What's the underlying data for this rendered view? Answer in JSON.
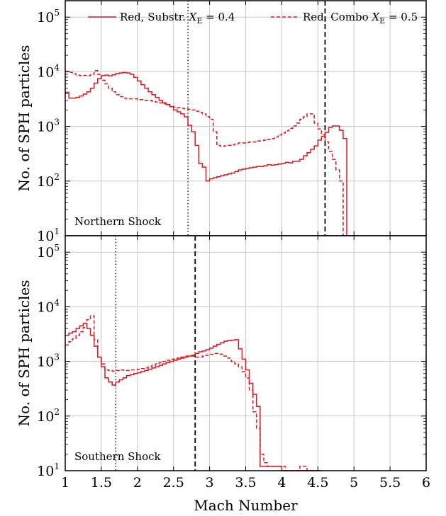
{
  "chart_data": {
    "type": "line",
    "xlabel": "Mach Number",
    "ylabel": "No. of SPH particles",
    "xlim": [
      1,
      6
    ],
    "ylim": [
      10,
      200000
    ],
    "yscale": "log",
    "grid": true,
    "x_ticks": [
      "1",
      "1.5",
      "2",
      "2.5",
      "3",
      "3.5",
      "4",
      "4.5",
      "5",
      "5.5",
      "6"
    ],
    "y_tick_base": "10",
    "y_tick_exponents": [
      "1",
      "2",
      "3",
      "4",
      "5"
    ],
    "legend": {
      "placement": "top",
      "entries": [
        {
          "style": "solid",
          "prefix": "Red, Substr.",
          "var": "X",
          "sub": "E",
          "suffix": "= 0.4"
        },
        {
          "style": "dashed",
          "prefix": "Red, Combo",
          "var": "X",
          "sub": "E",
          "suffix": "= 0.5"
        }
      ]
    },
    "color": "#e0161c",
    "panels": [
      {
        "label": "Northern Shock",
        "vline_dotted": 2.7,
        "vline_dashed": 4.6,
        "series": [
          {
            "style": "solid",
            "x": [
              1.0,
              1.05,
              1.1,
              1.15,
              1.2,
              1.25,
              1.3,
              1.35,
              1.4,
              1.45,
              1.5,
              1.55,
              1.6,
              1.65,
              1.7,
              1.75,
              1.8,
              1.85,
              1.9,
              1.95,
              2.0,
              2.05,
              2.1,
              2.15,
              2.2,
              2.25,
              2.3,
              2.35,
              2.4,
              2.45,
              2.5,
              2.55,
              2.6,
              2.65,
              2.7,
              2.75,
              2.8,
              2.85,
              2.9,
              2.95,
              3.0,
              3.05,
              3.1,
              3.15,
              3.2,
              3.25,
              3.3,
              3.35,
              3.4,
              3.45,
              3.5,
              3.55,
              3.6,
              3.65,
              3.7,
              3.75,
              3.8,
              3.85,
              3.9,
              3.95,
              4.0,
              4.05,
              4.1,
              4.15,
              4.2,
              4.25,
              4.3,
              4.35,
              4.4,
              4.45,
              4.5,
              4.55,
              4.6,
              4.65,
              4.7,
              4.75,
              4.8,
              4.85
            ],
            "y": [
              4200,
              3300,
              3300,
              3400,
              3600,
              3900,
              4300,
              5000,
              6200,
              7500,
              8500,
              8700,
              8400,
              8800,
              9300,
              9500,
              9700,
              9500,
              9000,
              7900,
              6800,
              5800,
              5000,
              4300,
              3800,
              3400,
              3000,
              2700,
              2500,
              2300,
              2000,
              1850,
              1700,
              1500,
              1050,
              800,
              450,
              210,
              180,
              100,
              110,
              115,
              120,
              125,
              130,
              135,
              140,
              150,
              160,
              165,
              170,
              175,
              180,
              185,
              185,
              190,
              200,
              195,
              200,
              205,
              210,
              220,
              215,
              230,
              230,
              250,
              290,
              330,
              380,
              440,
              560,
              650,
              780,
              960,
              1020,
              1020,
              850,
              600
            ]
          },
          {
            "style": "dashed",
            "x": [
              1.0,
              1.05,
              1.1,
              1.15,
              1.2,
              1.25,
              1.3,
              1.35,
              1.4,
              1.45,
              1.5,
              1.55,
              1.6,
              1.65,
              1.7,
              1.75,
              1.8,
              1.85,
              1.9,
              1.95,
              2.0,
              2.05,
              2.1,
              2.15,
              2.2,
              2.25,
              2.3,
              2.35,
              2.4,
              2.45,
              2.5,
              2.55,
              2.6,
              2.65,
              2.7,
              2.75,
              2.8,
              2.85,
              2.9,
              2.95,
              3.0,
              3.05,
              3.1,
              3.15,
              3.2,
              3.25,
              3.3,
              3.35,
              3.4,
              3.45,
              3.5,
              3.55,
              3.6,
              3.65,
              3.7,
              3.75,
              3.8,
              3.85,
              3.9,
              3.95,
              4.0,
              4.05,
              4.1,
              4.15,
              4.2,
              4.25,
              4.3,
              4.35,
              4.4,
              4.45,
              4.5,
              4.55,
              4.6,
              4.65,
              4.7,
              4.75,
              4.8
            ],
            "y": [
              10200,
              9800,
              9200,
              8700,
              8500,
              8600,
              8500,
              8900,
              10500,
              9000,
              7000,
              6000,
              5000,
              4300,
              3800,
              3500,
              3300,
              3200,
              3200,
              3200,
              3100,
              3100,
              3000,
              3000,
              2900,
              2800,
              2700,
              2600,
              2500,
              2350,
              2250,
              2200,
              2150,
              2100,
              2050,
              2000,
              1900,
              1800,
              1700,
              1500,
              1350,
              800,
              450,
              430,
              440,
              450,
              460,
              480,
              500,
              500,
              510,
              520,
              520,
              540,
              550,
              560,
              580,
              600,
              640,
              700,
              760,
              830,
              920,
              1020,
              1150,
              1350,
              1500,
              1700,
              1700,
              1150,
              900,
              700,
              520,
              350,
              250,
              160,
              100
            ]
          }
        ]
      },
      {
        "label": "Southern Shock",
        "vline_dotted": 1.7,
        "vline_dashed": 2.8,
        "series": [
          {
            "style": "solid",
            "x": [
              1.0,
              1.05,
              1.1,
              1.15,
              1.2,
              1.25,
              1.3,
              1.35,
              1.4,
              1.45,
              1.5,
              1.55,
              1.6,
              1.65,
              1.7,
              1.75,
              1.8,
              1.85,
              1.9,
              1.95,
              2.0,
              2.05,
              2.1,
              2.15,
              2.2,
              2.25,
              2.3,
              2.35,
              2.4,
              2.45,
              2.5,
              2.55,
              2.6,
              2.65,
              2.7,
              2.75,
              2.8,
              2.85,
              2.9,
              2.95,
              3.0,
              3.05,
              3.1,
              3.15,
              3.2,
              3.25,
              3.3,
              3.35,
              3.4,
              3.45,
              3.5,
              3.55,
              3.6,
              3.65,
              3.7,
              3.75,
              3.8,
              3.85,
              3.9,
              3.95,
              4.0,
              4.05,
              4.1,
              4.15,
              4.2,
              4.25,
              4.3,
              4.35,
              4.4,
              4.45,
              4.5
            ],
            "y": [
              3000,
              3300,
              3500,
              4000,
              4500,
              5000,
              4000,
              3000,
              1900,
              1200,
              800,
              500,
              420,
              370,
              420,
              460,
              500,
              550,
              570,
              600,
              620,
              650,
              680,
              720,
              760,
              800,
              850,
              900,
              950,
              1000,
              1050,
              1100,
              1150,
              1200,
              1250,
              1300,
              1400,
              1500,
              1550,
              1650,
              1750,
              1900,
              2050,
              2200,
              2350,
              2400,
              2450,
              2500,
              1700,
              1100,
              700,
              400,
              250,
              150,
              12,
              12,
              12,
              12,
              12,
              12,
              10,
              10,
              10,
              10,
              10,
              10,
              10,
              10,
              10,
              10,
              10
            ]
          },
          {
            "style": "dashed",
            "x": [
              1.0,
              1.05,
              1.1,
              1.15,
              1.2,
              1.25,
              1.3,
              1.35,
              1.4,
              1.45,
              1.5,
              1.55,
              1.6,
              1.65,
              1.7,
              1.75,
              1.8,
              1.85,
              1.9,
              1.95,
              2.0,
              2.05,
              2.1,
              2.15,
              2.2,
              2.25,
              2.3,
              2.35,
              2.4,
              2.45,
              2.5,
              2.55,
              2.6,
              2.65,
              2.7,
              2.75,
              2.8,
              2.85,
              2.9,
              2.95,
              3.0,
              3.05,
              3.1,
              3.15,
              3.2,
              3.25,
              3.3,
              3.35,
              3.4,
              3.45,
              3.5,
              3.55,
              3.6,
              3.65,
              3.7,
              3.75,
              3.8,
              3.85,
              3.9,
              3.95,
              4.0,
              4.05,
              4.1,
              4.15,
              4.2,
              4.25,
              4.3,
              4.35,
              4.4,
              4.45
            ],
            "y": [
              2000,
              2300,
              2600,
              3000,
              3500,
              4200,
              5800,
              6800,
              2500,
              1200,
              900,
              700,
              680,
              660,
              680,
              700,
              690,
              680,
              700,
              700,
              720,
              740,
              760,
              800,
              850,
              900,
              950,
              1000,
              1050,
              1100,
              1100,
              1150,
              1200,
              1250,
              1250,
              1250,
              1200,
              1200,
              1250,
              1300,
              1350,
              1400,
              1400,
              1350,
              1250,
              1150,
              1000,
              900,
              800,
              650,
              500,
              300,
              120,
              60,
              20,
              14,
              12,
              12,
              12,
              12,
              12,
              10,
              10,
              10,
              10,
              12,
              12,
              10,
              10,
              10
            ]
          }
        ]
      }
    ]
  }
}
